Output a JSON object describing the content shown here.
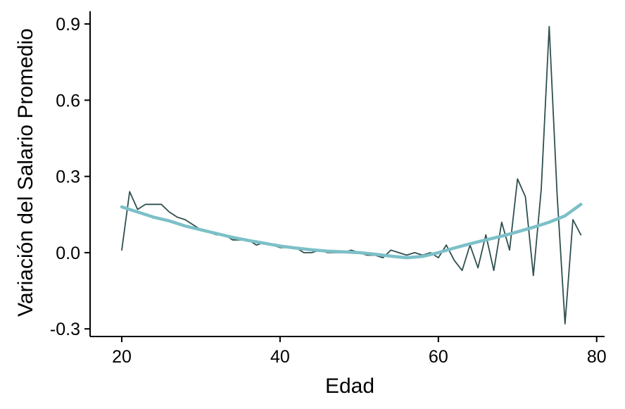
{
  "chart_data": {
    "type": "line",
    "title": "",
    "xlabel": "Edad",
    "ylabel": "Variación del Salario Promedio",
    "xlim": [
      16,
      81
    ],
    "ylim": [
      -0.33,
      0.95
    ],
    "xticks": [
      20,
      40,
      60,
      80
    ],
    "yticks": [
      -0.3,
      0.0,
      0.3,
      0.6,
      0.9
    ],
    "xtick_labels": [
      "20",
      "40",
      "60",
      "80"
    ],
    "ytick_labels": [
      "-0.3",
      "0.0",
      "0.3",
      "0.6",
      "0.9"
    ],
    "grid": false,
    "legend": "none",
    "series": [
      {
        "color": "#2f4f4f",
        "style": "raw",
        "x": [
          20,
          21,
          22,
          23,
          24,
          25,
          26,
          27,
          28,
          29,
          30,
          31,
          32,
          33,
          34,
          35,
          36,
          37,
          38,
          39,
          40,
          41,
          42,
          43,
          44,
          45,
          46,
          47,
          48,
          49,
          50,
          51,
          52,
          53,
          54,
          55,
          56,
          57,
          58,
          59,
          60,
          61,
          62,
          63,
          64,
          65,
          66,
          67,
          68,
          69,
          70,
          71,
          72,
          73,
          74,
          75,
          76,
          77,
          78
        ],
        "y": [
          0.01,
          0.24,
          0.17,
          0.19,
          0.19,
          0.19,
          0.16,
          0.14,
          0.13,
          0.11,
          0.09,
          0.08,
          0.07,
          0.07,
          0.05,
          0.05,
          0.05,
          0.03,
          0.04,
          0.03,
          0.02,
          0.02,
          0.02,
          0.0,
          0.0,
          0.01,
          0.0,
          0.0,
          0.0,
          0.01,
          0.0,
          -0.01,
          -0.01,
          -0.02,
          0.01,
          0.0,
          -0.01,
          0.0,
          -0.01,
          0.0,
          -0.02,
          0.03,
          -0.03,
          -0.07,
          0.03,
          -0.06,
          0.07,
          -0.07,
          0.12,
          0.01,
          0.29,
          0.22,
          -0.09,
          0.25,
          0.89,
          0.23,
          -0.28,
          0.13,
          0.07
        ]
      },
      {
        "color": "#7cc0c8",
        "style": "smooth",
        "x": [
          20,
          22,
          24,
          26,
          28,
          30,
          32,
          34,
          36,
          38,
          40,
          42,
          44,
          46,
          48,
          50,
          52,
          54,
          56,
          58,
          60,
          62,
          64,
          66,
          68,
          70,
          72,
          74,
          76,
          78
        ],
        "y": [
          0.18,
          0.16,
          0.14,
          0.125,
          0.105,
          0.09,
          0.075,
          0.06,
          0.048,
          0.037,
          0.026,
          0.018,
          0.011,
          0.006,
          0.003,
          0.0,
          -0.006,
          -0.014,
          -0.02,
          -0.015,
          0.0,
          0.018,
          0.035,
          0.05,
          0.065,
          0.082,
          0.1,
          0.12,
          0.145,
          0.19
        ]
      }
    ]
  }
}
